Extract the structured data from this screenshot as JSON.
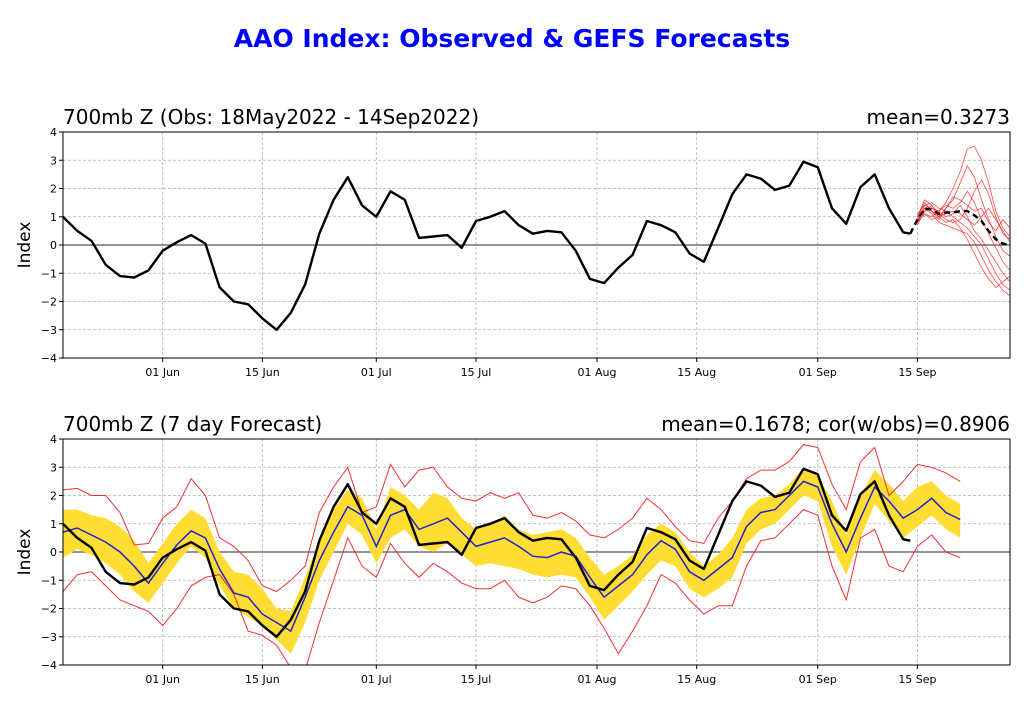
{
  "chart_data": {
    "title": "AAO Index: Observed & GEFS Forecasts",
    "panels": [
      {
        "type": "line",
        "title": "700mb Z (Obs: 18May2022 - 14Sep2022)",
        "stat": "mean=0.3273",
        "ylabel": "Index",
        "ylim": [
          -4,
          4
        ],
        "yticks": [
          -4,
          -3,
          -2,
          -1,
          0,
          1,
          2,
          3,
          4
        ],
        "ytick_labels": [
          "−4",
          "−3",
          "−2",
          "−1",
          "0",
          "1",
          "2",
          "3",
          "4"
        ],
        "xlim": [
          "2022-05-18",
          "2022-09-28"
        ],
        "xticks": [
          "2022-06-01",
          "2022-06-15",
          "2022-07-01",
          "2022-07-15",
          "2022-08-01",
          "2022-08-15",
          "2022-09-01",
          "2022-09-15"
        ],
        "xtick_labels": [
          "01 Jun",
          "15 Jun",
          "01 Jul",
          "15 Jul",
          "01 Aug",
          "15 Aug",
          "01 Sep",
          "15 Sep"
        ],
        "grid": true,
        "observed": {
          "color": "#000000",
          "dates": [
            "2022-05-18",
            "2022-05-20",
            "2022-05-22",
            "2022-05-24",
            "2022-05-26",
            "2022-05-28",
            "2022-05-30",
            "2022-06-01",
            "2022-06-03",
            "2022-06-05",
            "2022-06-07",
            "2022-06-09",
            "2022-06-11",
            "2022-06-13",
            "2022-06-15",
            "2022-06-17",
            "2022-06-19",
            "2022-06-21",
            "2022-06-23",
            "2022-06-25",
            "2022-06-27",
            "2022-06-29",
            "2022-07-01",
            "2022-07-03",
            "2022-07-05",
            "2022-07-07",
            "2022-07-09",
            "2022-07-11",
            "2022-07-13",
            "2022-07-15",
            "2022-07-17",
            "2022-07-19",
            "2022-07-21",
            "2022-07-23",
            "2022-07-25",
            "2022-07-27",
            "2022-07-29",
            "2022-07-31",
            "2022-08-02",
            "2022-08-04",
            "2022-08-06",
            "2022-08-08",
            "2022-08-10",
            "2022-08-12",
            "2022-08-14",
            "2022-08-16",
            "2022-08-18",
            "2022-08-20",
            "2022-08-22",
            "2022-08-24",
            "2022-08-26",
            "2022-08-28",
            "2022-08-30",
            "2022-09-01",
            "2022-09-03",
            "2022-09-05",
            "2022-09-07",
            "2022-09-09",
            "2022-09-11",
            "2022-09-13",
            "2022-09-14"
          ],
          "values": [
            1.0,
            0.5,
            0.15,
            -0.7,
            -1.1,
            -1.15,
            -0.9,
            -0.2,
            0.1,
            0.35,
            0.05,
            -1.5,
            -2.0,
            -2.1,
            -2.6,
            -3.0,
            -2.4,
            -1.4,
            0.4,
            1.6,
            2.4,
            1.4,
            1.0,
            1.9,
            1.6,
            0.25,
            0.3,
            0.35,
            -0.1,
            0.85,
            1.0,
            1.2,
            0.7,
            0.4,
            0.5,
            0.45,
            -0.2,
            -1.2,
            -1.35,
            -0.8,
            -0.35,
            0.85,
            0.7,
            0.45,
            -0.3,
            -0.6,
            0.6,
            1.8,
            2.5,
            2.35,
            1.95,
            2.1,
            2.95,
            2.75,
            1.3,
            0.75,
            2.05,
            2.5,
            1.3,
            0.45,
            0.4
          ]
        },
        "ensemble": {
          "member_color": "#ff0000",
          "mean_color": "#000000",
          "dates": [
            "2022-09-15",
            "2022-09-16",
            "2022-09-17",
            "2022-09-18",
            "2022-09-19",
            "2022-09-20",
            "2022-09-21",
            "2022-09-22",
            "2022-09-23",
            "2022-09-24",
            "2022-09-25",
            "2022-09-26",
            "2022-09-27",
            "2022-09-28"
          ],
          "mean": [
            0.9,
            1.3,
            1.25,
            1.1,
            1.15,
            1.15,
            1.2,
            1.2,
            1.05,
            0.85,
            0.5,
            0.2,
            0.05,
            0.0
          ],
          "members": [
            [
              0.8,
              1.4,
              1.3,
              1.2,
              1.5,
              2.0,
              2.6,
              3.4,
              3.5,
              3.0,
              2.2,
              1.2,
              0.6,
              0.3
            ],
            [
              1.0,
              1.5,
              1.2,
              1.0,
              1.3,
              1.6,
              2.2,
              2.8,
              2.4,
              1.6,
              0.9,
              0.3,
              -0.2,
              -0.4
            ],
            [
              0.7,
              1.2,
              1.4,
              1.1,
              0.9,
              0.8,
              0.9,
              1.3,
              1.9,
              2.3,
              1.8,
              1.0,
              0.4,
              0.2
            ],
            [
              0.9,
              1.3,
              1.1,
              0.8,
              0.7,
              0.6,
              0.5,
              0.4,
              0.1,
              -0.4,
              -0.9,
              -1.3,
              -1.6,
              -1.8
            ],
            [
              1.1,
              1.4,
              1.5,
              1.3,
              1.2,
              1.0,
              0.8,
              0.6,
              0.3,
              0.0,
              -0.5,
              -1.0,
              -1.4,
              -1.6
            ],
            [
              0.8,
              1.1,
              1.0,
              1.2,
              1.4,
              1.3,
              1.5,
              1.9,
              1.5,
              0.9,
              0.4,
              -0.1,
              -0.6,
              -0.9
            ],
            [
              1.0,
              1.6,
              1.4,
              1.0,
              1.1,
              1.2,
              1.1,
              0.9,
              0.7,
              1.0,
              1.3,
              0.9,
              0.5,
              0.1
            ],
            [
              0.9,
              1.2,
              1.3,
              1.2,
              1.0,
              1.1,
              1.4,
              1.0,
              0.5,
              0.2,
              -0.2,
              -0.6,
              -1.0,
              -1.3
            ],
            [
              0.8,
              1.3,
              1.2,
              0.9,
              1.3,
              1.7,
              1.6,
              1.4,
              1.2,
              1.3,
              0.8,
              0.5,
              0.9,
              0.6
            ],
            [
              1.0,
              1.1,
              0.9,
              1.0,
              0.8,
              0.9,
              0.6,
              0.2,
              -0.3,
              -0.8,
              -1.2,
              -1.5,
              -1.3,
              -1.1
            ]
          ]
        }
      },
      {
        "type": "line",
        "title": "700mb Z (7 day Forecast)",
        "stat": "mean=0.1678; cor(w/obs)=0.8906",
        "ylabel": "Index",
        "ylim": [
          -4,
          4
        ],
        "yticks": [
          -4,
          -3,
          -2,
          -1,
          0,
          1,
          2,
          3,
          4
        ],
        "ytick_labels": [
          "−4",
          "−3",
          "−2",
          "−1",
          "0",
          "1",
          "2",
          "3",
          "4"
        ],
        "xlim": [
          "2022-05-18",
          "2022-09-28"
        ],
        "xticks": [
          "2022-06-01",
          "2022-06-15",
          "2022-07-01",
          "2022-07-15",
          "2022-08-01",
          "2022-08-15",
          "2022-09-01",
          "2022-09-15"
        ],
        "xtick_labels": [
          "01 Jun",
          "15 Jun",
          "01 Jul",
          "15 Jul",
          "01 Aug",
          "15 Aug",
          "01 Sep",
          "15 Sep"
        ],
        "grid": true,
        "colors": {
          "band": "#ffdd33",
          "mean": "#2222cc",
          "minmax": "#ee3333",
          "observed": "#000000"
        },
        "dates": [
          "2022-05-18",
          "2022-05-20",
          "2022-05-22",
          "2022-05-24",
          "2022-05-26",
          "2022-05-28",
          "2022-05-30",
          "2022-06-01",
          "2022-06-03",
          "2022-06-05",
          "2022-06-07",
          "2022-06-09",
          "2022-06-11",
          "2022-06-13",
          "2022-06-15",
          "2022-06-17",
          "2022-06-19",
          "2022-06-21",
          "2022-06-23",
          "2022-06-25",
          "2022-06-27",
          "2022-06-29",
          "2022-07-01",
          "2022-07-03",
          "2022-07-05",
          "2022-07-07",
          "2022-07-09",
          "2022-07-11",
          "2022-07-13",
          "2022-07-15",
          "2022-07-17",
          "2022-07-19",
          "2022-07-21",
          "2022-07-23",
          "2022-07-25",
          "2022-07-27",
          "2022-07-29",
          "2022-07-31",
          "2022-08-02",
          "2022-08-04",
          "2022-08-06",
          "2022-08-08",
          "2022-08-10",
          "2022-08-12",
          "2022-08-14",
          "2022-08-16",
          "2022-08-18",
          "2022-08-20",
          "2022-08-22",
          "2022-08-24",
          "2022-08-26",
          "2022-08-28",
          "2022-08-30",
          "2022-09-01",
          "2022-09-03",
          "2022-09-05",
          "2022-09-07",
          "2022-09-09",
          "2022-09-11",
          "2022-09-13",
          "2022-09-15",
          "2022-09-17",
          "2022-09-19",
          "2022-09-21"
        ],
        "forecast_mean": [
          0.7,
          0.85,
          0.6,
          0.35,
          0.0,
          -0.5,
          -1.1,
          -0.4,
          0.25,
          0.75,
          0.5,
          -0.6,
          -1.45,
          -1.6,
          -2.2,
          -2.5,
          -2.8,
          -1.6,
          -0.3,
          0.7,
          1.6,
          1.3,
          0.2,
          1.3,
          1.5,
          0.8,
          1.0,
          1.2,
          0.7,
          0.2,
          0.35,
          0.5,
          0.2,
          -0.15,
          -0.2,
          0.0,
          -0.15,
          -0.9,
          -1.6,
          -1.2,
          -0.8,
          -0.1,
          0.4,
          0.1,
          -0.7,
          -1.0,
          -0.6,
          -0.2,
          0.9,
          1.4,
          1.5,
          2.0,
          2.5,
          2.3,
          1.0,
          0.0,
          1.2,
          2.3,
          1.8,
          1.2,
          1.5,
          1.9,
          1.4,
          1.15
        ],
        "band_upper": [
          1.5,
          1.5,
          1.3,
          1.2,
          0.9,
          0.4,
          -0.4,
          0.3,
          1.0,
          1.5,
          1.2,
          0.0,
          -0.7,
          -0.8,
          -1.3,
          -2.0,
          -2.1,
          -0.9,
          0.4,
          1.5,
          2.2,
          1.9,
          0.8,
          2.3,
          2.0,
          1.5,
          2.1,
          1.9,
          1.2,
          0.8,
          1.0,
          1.3,
          0.8,
          0.6,
          0.7,
          0.8,
          0.5,
          -0.2,
          -0.8,
          -0.5,
          -0.1,
          0.6,
          1.0,
          0.7,
          0.0,
          -0.5,
          -0.1,
          0.5,
          1.5,
          1.9,
          2.0,
          2.4,
          3.0,
          2.7,
          1.8,
          0.6,
          2.0,
          2.9,
          2.4,
          1.8,
          2.3,
          2.5,
          2.0,
          1.7
        ],
        "band_lower": [
          -0.2,
          0.1,
          -0.1,
          -0.4,
          -0.8,
          -1.4,
          -1.8,
          -1.1,
          -0.4,
          0.2,
          -0.2,
          -1.2,
          -2.0,
          -2.3,
          -2.6,
          -3.1,
          -3.6,
          -2.5,
          -1.0,
          0.0,
          1.0,
          0.6,
          -0.4,
          0.5,
          0.8,
          0.2,
          0.0,
          0.3,
          -0.1,
          -0.5,
          -0.4,
          -0.5,
          -0.6,
          -0.8,
          -0.9,
          -0.8,
          -0.9,
          -1.6,
          -2.4,
          -1.9,
          -1.4,
          -0.8,
          -0.3,
          -0.5,
          -1.3,
          -1.6,
          -1.3,
          -0.9,
          0.3,
          0.8,
          1.0,
          1.5,
          2.0,
          1.8,
          0.2,
          -0.8,
          0.5,
          1.7,
          1.1,
          0.5,
          0.9,
          1.3,
          0.8,
          0.5
        ],
        "max": [
          2.2,
          2.25,
          2.0,
          2.0,
          1.4,
          0.25,
          0.3,
          1.2,
          1.6,
          2.6,
          2.0,
          0.5,
          0.2,
          -0.3,
          -1.2,
          -1.4,
          -1.0,
          -0.5,
          1.4,
          2.3,
          3.0,
          1.4,
          1.6,
          3.1,
          2.3,
          2.9,
          3.0,
          2.3,
          1.9,
          1.8,
          2.1,
          1.9,
          2.1,
          1.3,
          1.2,
          1.4,
          1.1,
          0.6,
          0.5,
          0.8,
          1.2,
          1.9,
          1.5,
          0.9,
          0.4,
          0.3,
          1.2,
          1.8,
          2.6,
          2.9,
          2.9,
          3.2,
          3.8,
          3.7,
          2.4,
          1.5,
          3.2,
          3.7,
          2.0,
          2.5,
          3.1,
          3.0,
          2.8,
          2.5
        ],
        "min": [
          -1.4,
          -0.8,
          -0.7,
          -1.2,
          -1.7,
          -1.9,
          -2.1,
          -2.6,
          -2.0,
          -1.2,
          -0.9,
          -0.8,
          -1.5,
          -2.8,
          -2.95,
          -3.3,
          -4.1,
          -4.2,
          -2.5,
          -1.0,
          0.5,
          -0.5,
          -0.9,
          0.3,
          -0.4,
          -0.9,
          -0.4,
          -0.7,
          -1.1,
          -1.3,
          -1.3,
          -1.0,
          -1.6,
          -1.8,
          -1.6,
          -1.2,
          -1.3,
          -1.9,
          -2.7,
          -3.6,
          -2.8,
          -1.9,
          -0.8,
          -1.1,
          -1.7,
          -2.2,
          -1.9,
          -1.9,
          -0.5,
          0.4,
          0.5,
          1.0,
          1.5,
          1.3,
          -0.5,
          -1.7,
          0.5,
          0.8,
          -0.5,
          -0.7,
          0.2,
          0.6,
          0.0,
          -0.2
        ]
      }
    ]
  }
}
